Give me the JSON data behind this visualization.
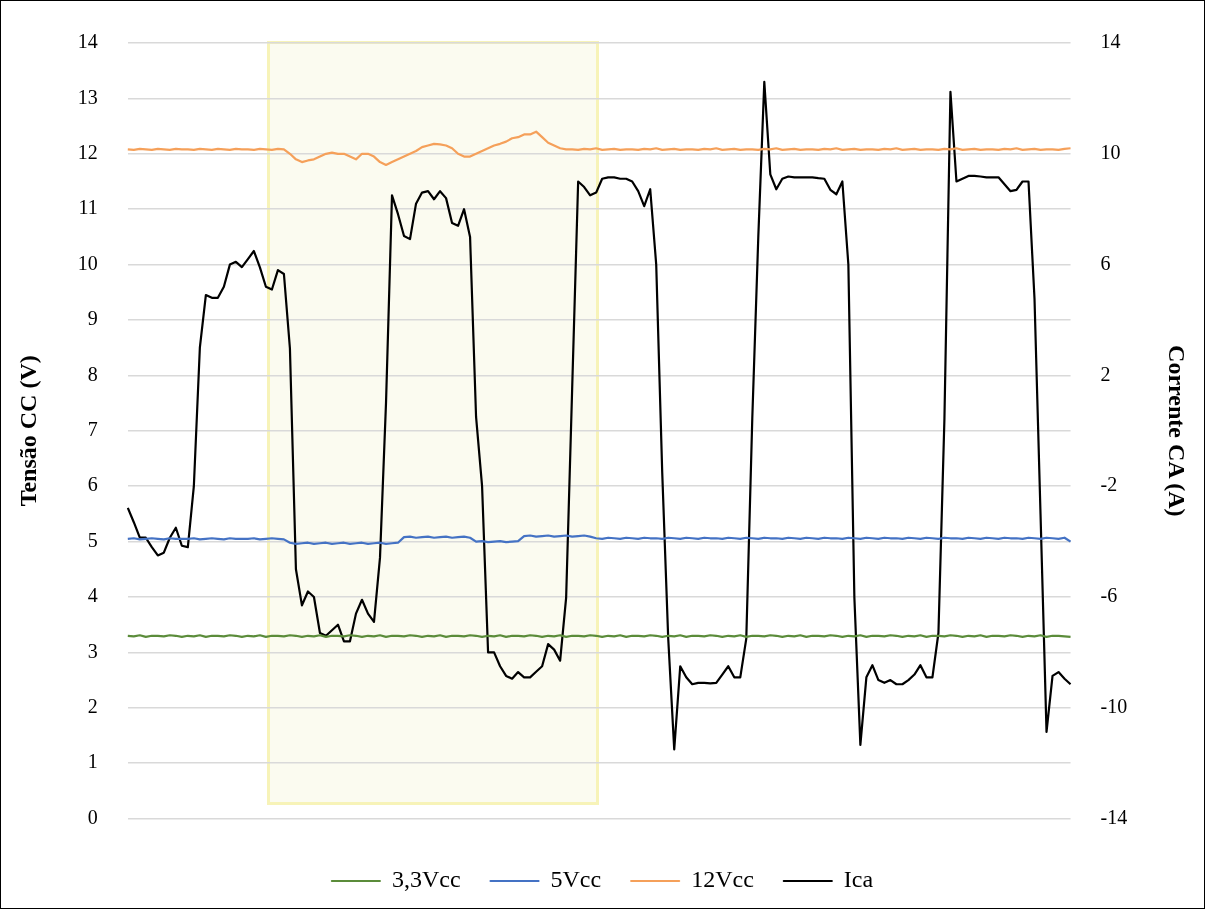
{
  "chart_data": {
    "type": "line",
    "ylabel": "Tensão CC (V)",
    "y2label": "Corrente CA (A)",
    "categories": [
      null,
      null,
      null,
      null,
      null,
      null,
      null,
      null,
      null,
      null,
      null,
      null,
      null,
      null,
      null,
      null,
      null,
      null,
      null,
      null,
      null,
      null,
      null,
      null,
      null,
      null,
      null,
      null,
      null,
      null,
      null,
      null,
      null,
      null,
      null,
      null,
      null,
      null,
      null,
      null,
      null,
      null,
      null,
      null,
      null,
      null,
      null,
      null,
      null,
      null,
      null,
      null,
      null,
      null,
      null,
      null,
      null,
      null,
      null,
      null,
      null,
      null,
      null,
      null,
      null,
      null,
      null,
      null,
      null,
      null,
      null,
      null,
      null,
      null,
      null,
      null,
      null,
      null,
      null,
      null,
      null,
      null,
      null,
      null,
      null,
      null,
      null,
      null,
      null,
      null,
      null,
      null,
      null,
      null,
      null,
      null,
      null,
      null,
      null,
      null,
      null,
      null,
      null,
      null,
      null,
      null,
      null,
      null,
      null,
      null,
      null,
      null,
      null,
      null,
      null,
      null,
      null,
      null,
      null,
      null,
      null,
      null,
      null,
      null,
      null,
      null,
      null,
      null,
      null,
      null,
      null,
      null,
      null,
      null,
      null,
      null,
      null,
      null,
      null,
      null,
      null,
      null,
      null,
      null,
      null,
      null,
      null,
      null,
      null,
      null,
      null,
      null,
      null,
      null,
      null,
      null,
      null,
      null
    ],
    "ylim": [
      0,
      14
    ],
    "yticks": [
      0,
      1,
      2,
      3,
      4,
      5,
      6,
      7,
      8,
      9,
      10,
      11,
      12,
      13,
      14
    ],
    "y2lim": [
      -14,
      14
    ],
    "y2ticks": [
      -14,
      -10,
      -6,
      -2,
      2,
      6,
      10,
      14
    ],
    "grid": "y",
    "legend": "bottom",
    "marker": "none",
    "line_style": "solid",
    "series": [
      {
        "name": "3,3Vcc",
        "color": "#5b8c3a",
        "values": [
          3.3,
          3.29,
          3.31,
          3.28,
          3.3,
          3.3,
          3.29,
          3.31,
          3.3,
          3.28,
          3.3,
          3.29,
          3.31,
          3.28,
          3.3,
          3.3,
          3.29,
          3.31,
          3.3,
          3.28,
          3.3,
          3.29,
          3.31,
          3.28,
          3.3,
          3.3,
          3.29,
          3.31,
          3.3,
          3.28,
          3.3,
          3.29,
          3.31,
          3.28,
          3.3,
          3.3,
          3.29,
          3.31,
          3.3,
          3.28,
          3.3,
          3.29,
          3.31,
          3.28,
          3.3,
          3.3,
          3.29,
          3.31,
          3.3,
          3.28,
          3.3,
          3.29,
          3.31,
          3.28,
          3.3,
          3.3,
          3.29,
          3.31,
          3.3,
          3.28,
          3.3,
          3.29,
          3.31,
          3.28,
          3.3,
          3.3,
          3.29,
          3.31,
          3.3,
          3.28,
          3.3,
          3.29,
          3.31,
          3.28,
          3.3,
          3.3,
          3.29,
          3.31,
          3.3,
          3.28,
          3.3,
          3.29,
          3.31,
          3.28,
          3.3,
          3.3,
          3.29,
          3.31,
          3.3,
          3.28,
          3.3,
          3.29,
          3.31,
          3.28,
          3.3,
          3.3,
          3.29,
          3.31,
          3.3,
          3.28,
          3.3,
          3.29,
          3.31,
          3.28,
          3.3,
          3.3,
          3.29,
          3.31,
          3.3,
          3.28,
          3.3,
          3.29,
          3.31,
          3.28,
          3.3,
          3.3,
          3.29,
          3.31,
          3.3,
          3.28,
          3.3,
          3.29,
          3.31,
          3.28,
          3.3,
          3.3,
          3.29,
          3.31,
          3.3,
          3.28,
          3.3,
          3.29,
          3.31,
          3.28,
          3.3,
          3.3,
          3.29,
          3.31,
          3.3,
          3.28,
          3.3,
          3.29,
          3.31,
          3.28,
          3.3,
          3.3,
          3.29,
          3.31,
          3.3,
          3.28,
          3.3,
          3.29,
          3.31,
          3.28,
          3.3,
          3.3,
          3.29,
          3.28
        ]
      },
      {
        "name": "5Vcc",
        "color": "#4472c4",
        "values": [
          5.05,
          5.06,
          5.04,
          5.05,
          5.06,
          5.05,
          5.04,
          5.06,
          5.05,
          5.05,
          5.05,
          5.06,
          5.04,
          5.05,
          5.06,
          5.05,
          5.04,
          5.06,
          5.05,
          5.05,
          5.05,
          5.06,
          5.04,
          5.05,
          5.06,
          5.05,
          5.04,
          4.98,
          4.96,
          4.97,
          4.98,
          4.96,
          4.97,
          4.98,
          4.96,
          4.97,
          4.98,
          4.96,
          4.97,
          4.98,
          4.96,
          4.97,
          4.98,
          4.96,
          4.97,
          4.98,
          5.08,
          5.09,
          5.07,
          5.08,
          5.09,
          5.07,
          5.08,
          5.09,
          5.07,
          5.08,
          5.09,
          5.07,
          5.0,
          5.01,
          4.99,
          5.0,
          5.01,
          4.99,
          5.0,
          5.01,
          5.1,
          5.11,
          5.09,
          5.1,
          5.11,
          5.09,
          5.1,
          5.11,
          5.09,
          5.1,
          5.11,
          5.09,
          5.06,
          5.05,
          5.07,
          5.06,
          5.05,
          5.07,
          5.06,
          5.05,
          5.07,
          5.06,
          5.06,
          5.05,
          5.07,
          5.06,
          5.05,
          5.07,
          5.06,
          5.05,
          5.07,
          5.06,
          5.06,
          5.05,
          5.07,
          5.06,
          5.05,
          5.07,
          5.06,
          5.05,
          5.07,
          5.06,
          5.06,
          5.05,
          5.07,
          5.06,
          5.05,
          5.07,
          5.06,
          5.05,
          5.07,
          5.06,
          5.06,
          5.05,
          5.07,
          5.06,
          5.05,
          5.07,
          5.06,
          5.05,
          5.07,
          5.06,
          5.06,
          5.05,
          5.07,
          5.06,
          5.05,
          5.07,
          5.06,
          5.05,
          5.07,
          5.06,
          5.06,
          5.05,
          5.07,
          5.06,
          5.05,
          5.07,
          5.06,
          5.05,
          5.07,
          5.06,
          5.06,
          5.05,
          5.07,
          5.06,
          5.05,
          5.07,
          5.06,
          5.05,
          5.07,
          5.0
        ]
      },
      {
        "name": "12Vcc",
        "color": "#f5a05a",
        "values": [
          12.08,
          12.07,
          12.09,
          12.08,
          12.07,
          12.09,
          12.08,
          12.07,
          12.09,
          12.08,
          12.08,
          12.07,
          12.09,
          12.08,
          12.07,
          12.09,
          12.08,
          12.07,
          12.09,
          12.08,
          12.08,
          12.07,
          12.09,
          12.08,
          12.07,
          12.09,
          12.08,
          12.0,
          11.9,
          11.85,
          11.88,
          11.9,
          11.95,
          12.0,
          12.02,
          12.0,
          12.0,
          11.95,
          11.9,
          12.0,
          12.0,
          11.95,
          11.85,
          11.8,
          11.85,
          11.9,
          11.95,
          12.0,
          12.05,
          12.12,
          12.15,
          12.18,
          12.17,
          12.15,
          12.1,
          12.0,
          11.95,
          11.95,
          12.0,
          12.05,
          12.1,
          12.15,
          12.18,
          12.22,
          12.28,
          12.3,
          12.35,
          12.35,
          12.4,
          12.3,
          12.2,
          12.15,
          12.1,
          12.08,
          12.08,
          12.07,
          12.09,
          12.08,
          12.1,
          12.07,
          12.08,
          12.09,
          12.07,
          12.08,
          12.08,
          12.07,
          12.09,
          12.08,
          12.1,
          12.07,
          12.08,
          12.09,
          12.07,
          12.08,
          12.08,
          12.07,
          12.09,
          12.08,
          12.1,
          12.07,
          12.08,
          12.09,
          12.07,
          12.08,
          12.08,
          12.07,
          12.09,
          12.08,
          12.1,
          12.07,
          12.08,
          12.09,
          12.07,
          12.08,
          12.08,
          12.07,
          12.09,
          12.08,
          12.1,
          12.07,
          12.08,
          12.09,
          12.07,
          12.08,
          12.08,
          12.07,
          12.09,
          12.08,
          12.1,
          12.07,
          12.08,
          12.09,
          12.07,
          12.08,
          12.08,
          12.07,
          12.09,
          12.08,
          12.1,
          12.07,
          12.08,
          12.09,
          12.07,
          12.08,
          12.08,
          12.07,
          12.09,
          12.08,
          12.1,
          12.07,
          12.08,
          12.09,
          12.07,
          12.08,
          12.08,
          12.07,
          12.09,
          12.1
        ]
      },
      {
        "name": "Ica",
        "color": "#000000",
        "axis": "y2",
        "values": [
          -2.78,
          -3.3,
          -3.86,
          -3.86,
          -4.2,
          -4.5,
          -4.4,
          -3.86,
          -3.5,
          -4.15,
          -4.2,
          -2.0,
          3.0,
          4.9,
          4.8,
          4.8,
          5.2,
          6.0,
          6.1,
          5.91,
          6.2,
          6.49,
          5.9,
          5.2,
          5.1,
          5.8,
          5.66,
          2.97,
          -5.0,
          -6.3,
          -5.8,
          -6.0,
          -7.3,
          -7.4,
          -7.2,
          -7.0,
          -7.6,
          -7.6,
          -6.6,
          -6.1,
          -6.6,
          -6.9,
          -4.58,
          1.0,
          8.5,
          7.82,
          7.03,
          6.92,
          8.2,
          8.6,
          8.65,
          8.36,
          8.65,
          8.4,
          7.5,
          7.4,
          8.0,
          7.0,
          0.5,
          -2.0,
          -8.0,
          -8.0,
          -8.5,
          -8.85,
          -8.95,
          -8.71,
          -8.9,
          -8.9,
          -8.7,
          -8.5,
          -7.7,
          -7.9,
          -8.3,
          -6.02,
          1.5,
          9.0,
          8.8,
          8.5,
          8.6,
          9.1,
          9.15,
          9.15,
          9.1,
          9.1,
          9.0,
          8.65,
          8.11,
          8.72,
          6.0,
          -1.5,
          -7.5,
          -11.5,
          -8.5,
          -8.9,
          -9.15,
          -9.1,
          -9.1,
          -9.12,
          -9.1,
          -8.8,
          -8.5,
          -8.9,
          -8.9,
          -7.5,
          0.45,
          7.0,
          12.6,
          9.26,
          8.72,
          9.1,
          9.18,
          9.15,
          9.15,
          9.15,
          9.15,
          9.12,
          9.1,
          8.7,
          8.54,
          9.0,
          6.0,
          -6.02,
          -11.34,
          -8.9,
          -8.46,
          -9.0,
          -9.1,
          -9.0,
          -9.15,
          -9.15,
          -9.0,
          -8.8,
          -8.46,
          -8.9,
          -8.9,
          -7.3,
          0.45,
          12.24,
          9.0,
          9.1,
          9.2,
          9.2,
          9.18,
          9.15,
          9.15,
          9.15,
          8.9,
          8.65,
          8.7,
          9.0,
          9.0,
          4.76,
          -3.0,
          -10.87,
          -8.85,
          -8.71,
          -8.95,
          -9.15
        ]
      }
    ]
  }
}
